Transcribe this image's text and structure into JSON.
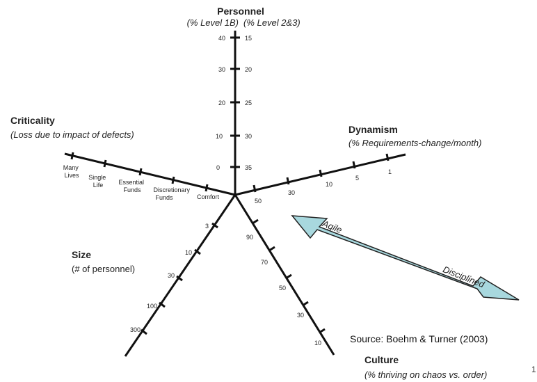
{
  "personnel": {
    "title": "Personnel",
    "sub_left": "(% Level 1B)",
    "sub_right": "(% Level 2&3)",
    "left_ticks": [
      "40",
      "30",
      "20",
      "10",
      "0"
    ],
    "right_ticks": [
      "15",
      "20",
      "25",
      "30",
      "35"
    ]
  },
  "dynamism": {
    "title": "Dynamism",
    "subtitle": "(% Requirements-change/month)",
    "ticks": [
      "50",
      "30",
      "10",
      "5",
      "1"
    ]
  },
  "criticality": {
    "title": "Criticality",
    "subtitle": "(Loss due to impact of defects)",
    "labels": [
      [
        "Many",
        "Lives"
      ],
      [
        "Single",
        "Life"
      ],
      [
        "Essential",
        "Funds"
      ],
      [
        "Discretionary",
        "Funds"
      ],
      [
        "Comfort"
      ]
    ]
  },
  "size": {
    "title": "Size",
    "subtitle": "(# of personnel)",
    "ticks": [
      "3",
      "10",
      "30",
      "100",
      "300"
    ]
  },
  "culture": {
    "title": "Culture",
    "subtitle": "(% thriving on chaos vs. order)",
    "ticks": [
      "90",
      "70",
      "50",
      "30",
      "10"
    ]
  },
  "arrow": {
    "left_label": "Agile",
    "right_label": "Disciplined",
    "color": "#a8d8de"
  },
  "source": "Source: Boehm & Turner (2003)",
  "page_number": "1"
}
